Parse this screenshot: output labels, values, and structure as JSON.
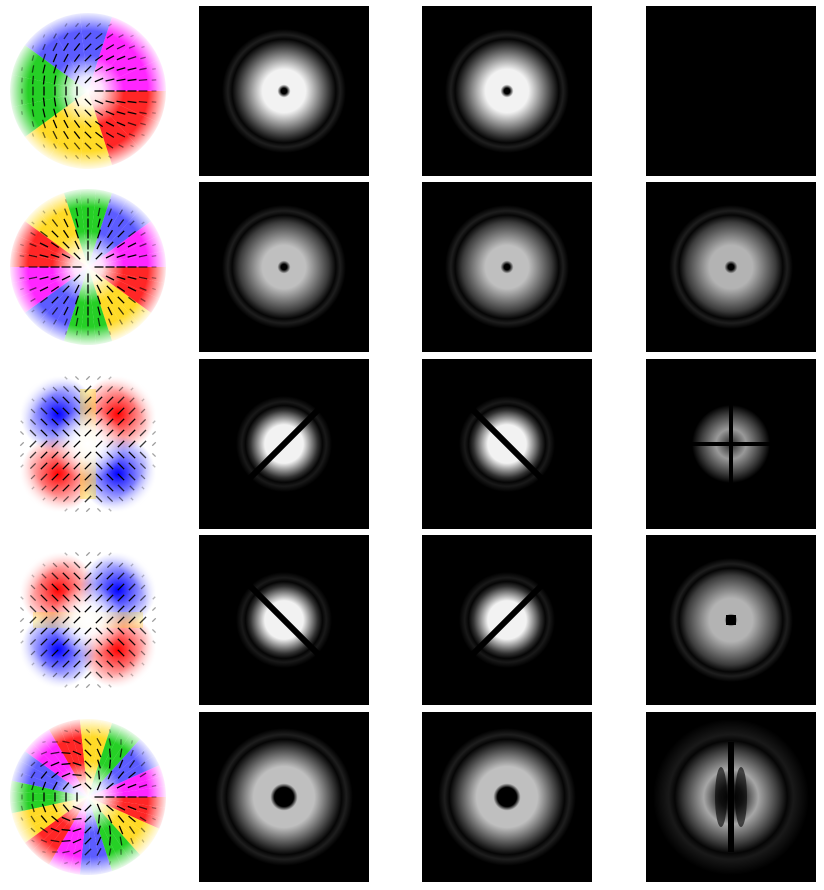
{
  "grid": {
    "rows": 5,
    "columns": 4
  },
  "rows": [
    {
      "mode_map": {
        "pattern": "radial-rainbow-1",
        "colors": [
          "#ff0000",
          "#ffd400",
          "#00c800",
          "#4040ff",
          "#ff00ff"
        ]
      },
      "panels": [
        {
          "pattern": "ring-dot",
          "intensity": 0.95
        },
        {
          "pattern": "ring-dot",
          "intensity": 0.95
        },
        {
          "pattern": "dark",
          "intensity": 0.0
        }
      ]
    },
    {
      "mode_map": {
        "pattern": "radial-rainbow-2",
        "colors": [
          "#ff0000",
          "#ffd400",
          "#00c800",
          "#4040ff",
          "#ff00ff"
        ]
      },
      "panels": [
        {
          "pattern": "ring-dot",
          "intensity": 0.75
        },
        {
          "pattern": "ring-dot",
          "intensity": 0.75
        },
        {
          "pattern": "ring-dot",
          "intensity": 0.7
        }
      ]
    },
    {
      "mode_map": {
        "pattern": "quadrant-red-blue-a",
        "colors": [
          "#0000ff",
          "#ff0000"
        ]
      },
      "panels": [
        {
          "pattern": "split-lobes",
          "angle_deg": -45,
          "intensity": 0.95
        },
        {
          "pattern": "split-lobes",
          "angle_deg": 45,
          "intensity": 0.95
        },
        {
          "pattern": "cross-quadrants",
          "intensity": 0.6
        }
      ]
    },
    {
      "mode_map": {
        "pattern": "quadrant-red-blue-b",
        "colors": [
          "#ff0000",
          "#0000ff"
        ]
      },
      "panels": [
        {
          "pattern": "split-lobes",
          "angle_deg": 45,
          "intensity": 0.95
        },
        {
          "pattern": "split-lobes",
          "angle_deg": -45,
          "intensity": 0.95
        },
        {
          "pattern": "ring-square-core",
          "intensity": 0.7
        }
      ]
    },
    {
      "mode_map": {
        "pattern": "radial-rainbow-3",
        "colors": [
          "#ff0000",
          "#ffd400",
          "#00c800",
          "#4040ff",
          "#ff00ff"
        ]
      },
      "panels": [
        {
          "pattern": "wide-ring",
          "intensity": 0.75
        },
        {
          "pattern": "wide-ring",
          "intensity": 0.75
        },
        {
          "pattern": "split-ring-vertical",
          "intensity": 0.65
        }
      ]
    }
  ]
}
